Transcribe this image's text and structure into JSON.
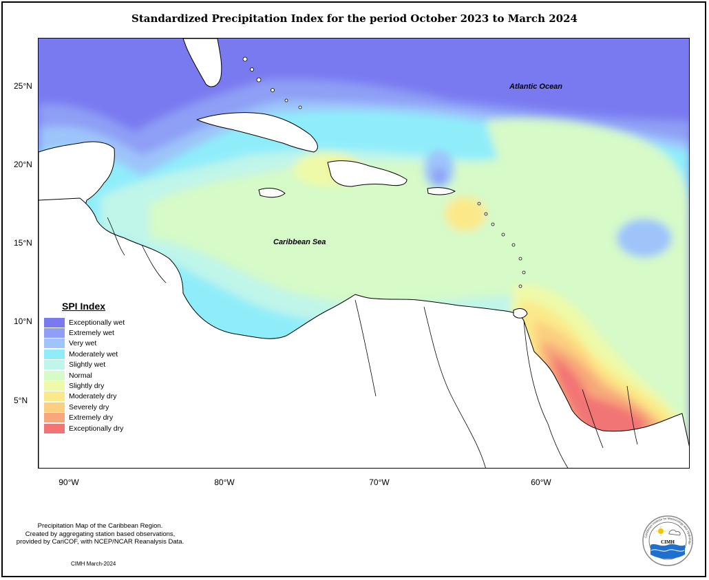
{
  "title": "Standardized Precipitation Index for the period October 2023 to March 2024",
  "latitude_labels": [
    "25°N",
    "20°N",
    "15°N",
    "10°N",
    "5°N"
  ],
  "longitude_labels": [
    "90°W",
    "80°W",
    "70°W",
    "60°W"
  ],
  "places": {
    "atlantic": "Atlantic Ocean",
    "caribbean": "Caribbean Sea"
  },
  "legend": {
    "title": "SPI Index",
    "items": [
      {
        "label": "Exceptionally wet",
        "color": "#7a7af0"
      },
      {
        "label": "Extremely wet",
        "color": "#8e9ff5"
      },
      {
        "label": "Very wet",
        "color": "#9ec4fa"
      },
      {
        "label": "Moderately wet",
        "color": "#8fedfa"
      },
      {
        "label": "Slightly wet",
        "color": "#c0f5ea"
      },
      {
        "label": "Normal",
        "color": "#d6fac8"
      },
      {
        "label": "Slightly dry",
        "color": "#eefaa8"
      },
      {
        "label": "Moderately dry",
        "color": "#fbe989"
      },
      {
        "label": "Severely dry",
        "color": "#fbcf80"
      },
      {
        "label": "Extremely dry",
        "color": "#f7a779"
      },
      {
        "label": "Exceptionally dry",
        "color": "#f27474"
      }
    ]
  },
  "footnote": {
    "line1": "Precipitation Map of the Caribbean Region.",
    "line2": "Created by aggregating station based observations,",
    "line3": "provided by CariCOF, with NCEP/NCAR Reanalysis Data."
  },
  "credit": "CIMH March-2024",
  "logo": {
    "acronym": "CIMH",
    "ring_text": "Caribbean Institute for Meteorology and Hydrology",
    "icon": "sun-cloud-waves-icon"
  }
}
